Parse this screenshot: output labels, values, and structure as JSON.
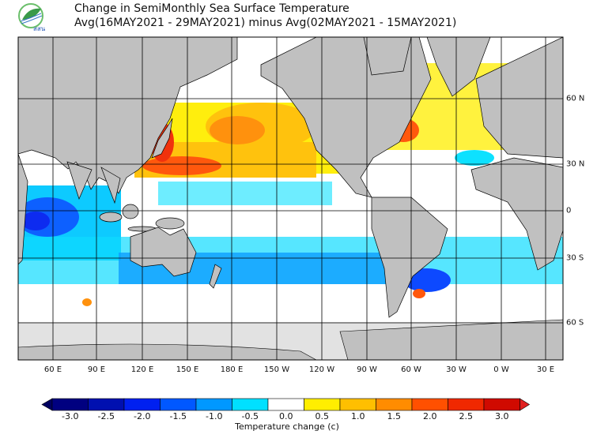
{
  "header": {
    "logo_text": "สสน",
    "title_line1": "Change in SemiMonthly Sea Surface Temperature",
    "title_line2": "Avg(16MAY2021 - 29MAY2021) minus Avg(02MAY2021 - 15MAY2021)"
  },
  "map": {
    "lon_labels": [
      "60 E",
      "90 E",
      "120 E",
      "150 E",
      "180 E",
      "150 W",
      "120 W",
      "90 W",
      "60 W",
      "30 W",
      "0 W",
      "30 E"
    ],
    "lat_labels": [
      "60 N",
      "30 N",
      "0",
      "30 S",
      "60 S"
    ],
    "land_color": "#c0c0c0",
    "ice_color": "#e2e2e2"
  },
  "colorbar": {
    "title": "Temperature change  (c)",
    "labels": [
      "-3.0",
      "-2.5",
      "-2.0",
      "-1.5",
      "-1.0",
      "-0.5",
      "0.0",
      "0.5",
      "1.0",
      "1.5",
      "2.0",
      "2.5",
      "3.0"
    ],
    "colors": [
      "#000080",
      "#0010b0",
      "#0020f0",
      "#0058ff",
      "#0098ff",
      "#00e0ff",
      "#ffffff",
      "#ffee00",
      "#ffbf00",
      "#ff8c00",
      "#ff5000",
      "#f02800",
      "#d00a00"
    ],
    "under_color": "#000060",
    "over_color": "#e02020"
  }
}
